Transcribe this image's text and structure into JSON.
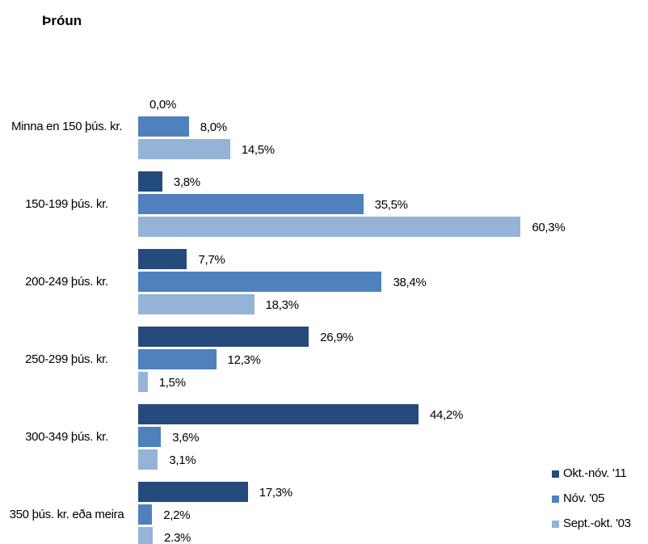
{
  "chart_data": {
    "type": "bar",
    "orientation": "horizontal",
    "title": "Þróun",
    "categories": [
      "Minna en 150 þús. kr.",
      "150-199 þús. kr.",
      "200-249 þús. kr.",
      "250-299 þús. kr.",
      "300-349 þús. kr.",
      "350 þús. kr. eða meira"
    ],
    "series": [
      {
        "name": "Okt.-nóv. '11",
        "color": "#254a7c",
        "values": [
          0.0,
          3.8,
          7.7,
          26.9,
          44.2,
          17.3
        ],
        "value_labels": [
          "0,0%",
          "3,8%",
          "7,7%",
          "26,9%",
          "44,2%",
          "17,3%"
        ]
      },
      {
        "name": "Nóv. '05",
        "color": "#4f81bd",
        "values": [
          8.0,
          35.5,
          38.4,
          12.3,
          3.6,
          2.2
        ],
        "value_labels": [
          "8,0%",
          "35,5%",
          "38,4%",
          "12,3%",
          "3,6%",
          "2,2%"
        ]
      },
      {
        "name": "Sept.-okt. '03",
        "color": "#95b3d7",
        "values": [
          14.5,
          60.3,
          18.3,
          1.5,
          3.1,
          2.3
        ],
        "value_labels": [
          "14,5%",
          "60,3%",
          "18,3%",
          "1,5%",
          "3,1%",
          "2.3%"
        ]
      }
    ],
    "legend": "bottom-right"
  }
}
